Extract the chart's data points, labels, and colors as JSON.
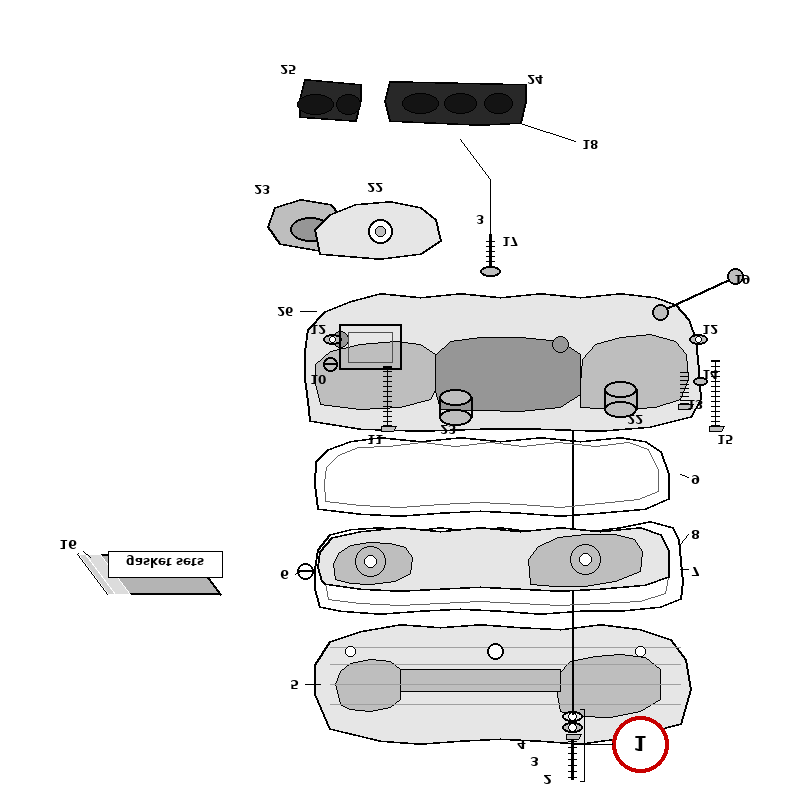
{
  "bg_color": "#ffffff",
  "lc": "#000000",
  "red": "#cc0000",
  "gray_light": "#e8e8e8",
  "gray_mid": "#cccccc",
  "gray_dark": "#999999",
  "black_gasket": "#303030",
  "figsize": [
    8,
    8
  ],
  "dpi": 100,
  "img_size": [
    800,
    800
  ]
}
